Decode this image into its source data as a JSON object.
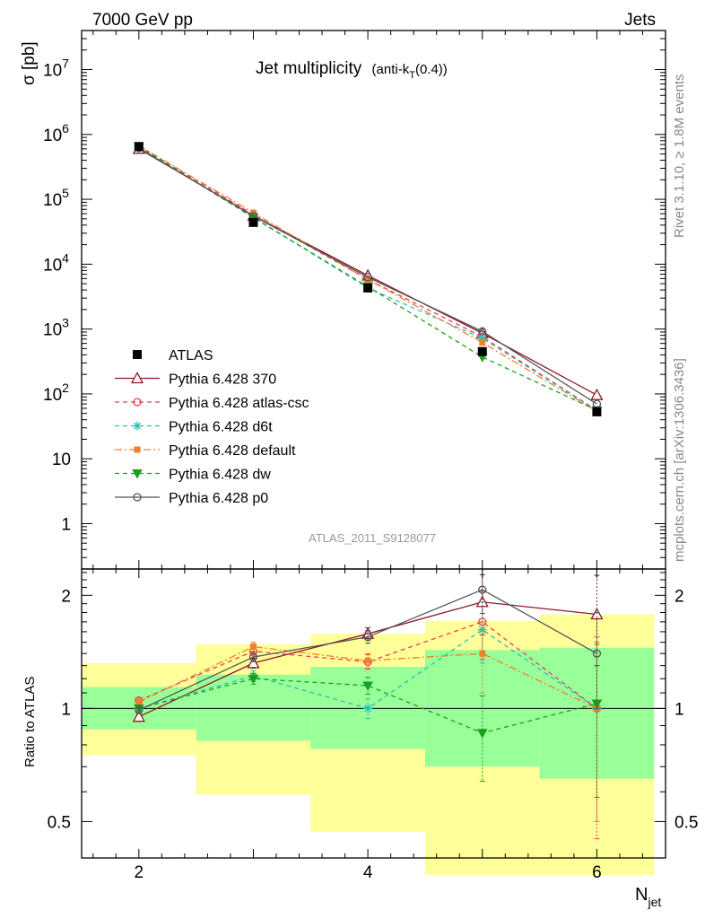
{
  "header": {
    "left": "7000 GeV pp",
    "right": "Jets"
  },
  "side": {
    "rivet": "Rivet 3.1.10, ≥ 1.8M events",
    "mcplots": "mcplots.cern.ch [arXiv:1306.3436]"
  },
  "chart_data": {
    "type": "line",
    "title": "Jet multiplicity",
    "title_suffix": "(anti-k",
    "title_sub": "T",
    "title_tail": "(0.4))",
    "watermark": "ATLAS_2011_S9128077",
    "ylabel": "σ [pb]",
    "ratio_ylabel": "Ratio to ATLAS",
    "xlabel": "N",
    "xlabel_sub": "jet",
    "xlim": [
      1.5,
      6.6
    ],
    "ylim": [
      0.2,
      40000000
    ],
    "yscale": "log",
    "ratio_ylim": [
      0.4,
      2.35
    ],
    "ratio_yscale": "log",
    "x_ticks": [
      2,
      4,
      6
    ],
    "x_tick_labels": [
      "2",
      "4",
      "6"
    ],
    "y_ticks": [
      1,
      10,
      100,
      1000,
      10000,
      100000,
      1000000,
      10000000
    ],
    "y_tick_labels": [
      {
        "base": "",
        "exp": "",
        "text": "1"
      },
      {
        "base": "",
        "exp": "",
        "text": "10"
      },
      {
        "base": "10",
        "exp": "2",
        "text": ""
      },
      {
        "base": "10",
        "exp": "3",
        "text": ""
      },
      {
        "base": "10",
        "exp": "4",
        "text": ""
      },
      {
        "base": "10",
        "exp": "5",
        "text": ""
      },
      {
        "base": "10",
        "exp": "6",
        "text": ""
      },
      {
        "base": "10",
        "exp": "7",
        "text": ""
      }
    ],
    "ratio_ticks": [
      0.5,
      1,
      2
    ],
    "ratio_tick_labels": [
      "0.5",
      "1",
      "2"
    ],
    "data": {
      "name": "ATLAS",
      "x": [
        2,
        3,
        4,
        5,
        6
      ],
      "y": [
        650000,
        44000,
        4300,
        450,
        53
      ],
      "band_inner": [
        [
          0.88,
          1.14
        ],
        [
          0.82,
          1.23
        ],
        [
          0.78,
          1.29
        ],
        [
          0.7,
          1.43
        ],
        [
          0.65,
          1.45
        ]
      ],
      "band_outer": [
        [
          0.75,
          1.32
        ],
        [
          0.59,
          1.48
        ],
        [
          0.47,
          1.58
        ],
        [
          0.36,
          1.71
        ],
        [
          0.36,
          1.78
        ]
      ]
    },
    "series": [
      {
        "name": "Pythia 6.428 370",
        "color": "#8b1a2b",
        "dash": "",
        "marker": "triangle-open",
        "y": [
          600000,
          56000,
          6700,
          860,
          96
        ],
        "ratio": [
          0.95,
          1.32,
          1.58,
          1.92,
          1.78
        ],
        "ratio_err": [
          0.02,
          0.04,
          0.06,
          0.35,
          0.48
        ]
      },
      {
        "name": "Pythia 6.428 atlas-csc",
        "color": "#ee3b5b",
        "dash": "5,4",
        "marker": "circle-open",
        "y": [
          660000,
          58000,
          5800,
          760,
          56
        ],
        "ratio": [
          1.05,
          1.42,
          1.33,
          1.7,
          1.0
        ],
        "ratio_err": [
          0.02,
          0.04,
          0.06,
          0.35,
          0.55
        ]
      },
      {
        "name": "Pythia 6.428 d6t",
        "color": "#2bbfb0",
        "dash": "5,4",
        "marker": "star",
        "y": [
          620000,
          53000,
          4300,
          720,
          55
        ],
        "ratio": [
          1.0,
          1.22,
          1.0,
          1.62,
          1.0
        ],
        "ratio_err": [
          0.02,
          0.04,
          0.06,
          0.3,
          0.5
        ]
      },
      {
        "name": "Pythia 6.428 default",
        "color": "#f0802a",
        "dash": "8,3,2,3",
        "marker": "square",
        "y": [
          670000,
          62000,
          5800,
          620,
          54
        ],
        "ratio": [
          1.04,
          1.46,
          1.34,
          1.4,
          1.0
        ],
        "ratio_err": [
          0.02,
          0.04,
          0.06,
          0.3,
          0.5
        ]
      },
      {
        "name": "Pythia 6.428 dw",
        "color": "#1e9e1e",
        "dash": "5,4",
        "marker": "triangle-down",
        "y": [
          660000,
          52000,
          4500,
          370,
          56
        ],
        "ratio": [
          1.0,
          1.2,
          1.15,
          0.86,
          1.03
        ],
        "ratio_err": [
          0.02,
          0.04,
          0.06,
          0.22,
          0.45
        ]
      },
      {
        "name": "Pythia 6.428 p0",
        "color": "#555555",
        "dash": "",
        "marker": "circle-open",
        "y": [
          620000,
          55000,
          6300,
          920,
          70
        ],
        "ratio": [
          0.99,
          1.37,
          1.55,
          2.07,
          1.4
        ],
        "ratio_err": [
          0.02,
          0.04,
          0.06,
          0.28,
          0.4
        ]
      }
    ]
  }
}
